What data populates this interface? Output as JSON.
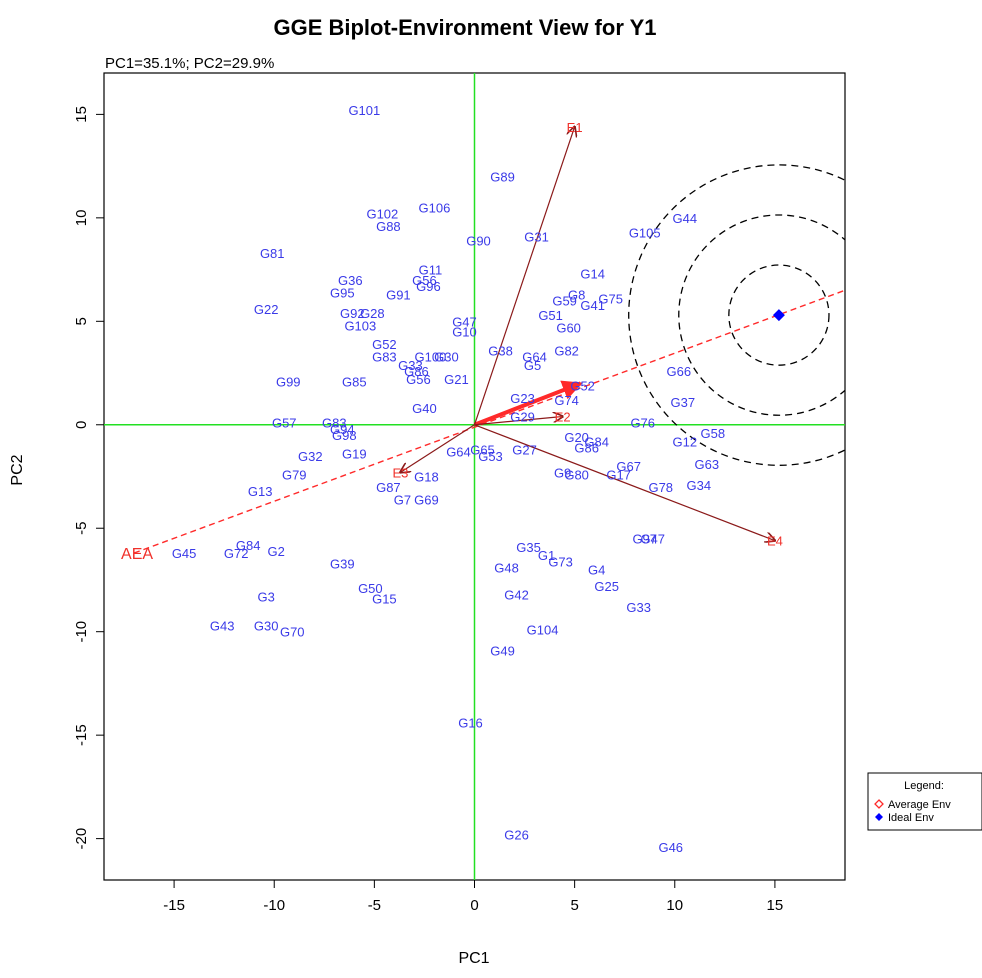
{
  "chart_data": {
    "type": "scatter",
    "title": "GGE Biplot-Environment View for Y1",
    "subtitle": "PC1=35.1%; PC2=29.9%",
    "xlabel": "PC1",
    "ylabel": "PC2",
    "xlim": [
      -18.5,
      18.5
    ],
    "ylim": [
      -22,
      17
    ],
    "xticks": [
      -15,
      -10,
      -5,
      0,
      5,
      10,
      15
    ],
    "yticks": [
      -20,
      -15,
      -10,
      -5,
      0,
      5,
      10,
      15
    ],
    "colors": {
      "genotype": "#3a3ae8",
      "environment": "#f0302a",
      "env_vector": "#8b1a1a",
      "axes_lines": "#22e022",
      "aea": "#ff2a2a",
      "ideal": "#0000ff",
      "circle": "#000000"
    },
    "genotypes": [
      {
        "name": "G101",
        "x": -5.5,
        "y": 15.2
      },
      {
        "name": "G89",
        "x": 1.4,
        "y": 12.0
      },
      {
        "name": "G102",
        "x": -4.6,
        "y": 10.2
      },
      {
        "name": "G88",
        "x": -4.3,
        "y": 9.6
      },
      {
        "name": "G106",
        "x": -2.0,
        "y": 10.5
      },
      {
        "name": "G90",
        "x": 0.2,
        "y": 8.9
      },
      {
        "name": "G31",
        "x": 3.1,
        "y": 9.1
      },
      {
        "name": "G105",
        "x": 8.5,
        "y": 9.3
      },
      {
        "name": "G44",
        "x": 10.5,
        "y": 10.0
      },
      {
        "name": "G81",
        "x": -10.1,
        "y": 8.3
      },
      {
        "name": "G11",
        "x": -2.2,
        "y": 7.5
      },
      {
        "name": "G36",
        "x": -6.2,
        "y": 7.0
      },
      {
        "name": "G95",
        "x": -6.6,
        "y": 6.4
      },
      {
        "name": "G91",
        "x": -3.8,
        "y": 6.3
      },
      {
        "name": "G56",
        "x": -2.5,
        "y": 7.0
      },
      {
        "name": "G96",
        "x": -2.3,
        "y": 6.7
      },
      {
        "name": "G14",
        "x": 5.9,
        "y": 7.3
      },
      {
        "name": "G22",
        "x": -10.4,
        "y": 5.6
      },
      {
        "name": "G92",
        "x": -6.1,
        "y": 5.4
      },
      {
        "name": "G28",
        "x": -5.1,
        "y": 5.4
      },
      {
        "name": "G103",
        "x": -5.7,
        "y": 4.8
      },
      {
        "name": "G47",
        "x": -0.5,
        "y": 5.0
      },
      {
        "name": "G10",
        "x": -0.5,
        "y": 4.5
      },
      {
        "name": "G51",
        "x": 3.8,
        "y": 5.3
      },
      {
        "name": "G59",
        "x": 4.5,
        "y": 6.0
      },
      {
        "name": "G8",
        "x": 5.1,
        "y": 6.3
      },
      {
        "name": "G41",
        "x": 5.9,
        "y": 5.8
      },
      {
        "name": "G75",
        "x": 6.8,
        "y": 6.1
      },
      {
        "name": "G60",
        "x": 4.7,
        "y": 4.7
      },
      {
        "name": "G52",
        "x": -4.5,
        "y": 3.9
      },
      {
        "name": "G83",
        "x": -4.5,
        "y": 3.3
      },
      {
        "name": "G100",
        "x": -2.2,
        "y": 3.3
      },
      {
        "name": "G30b",
        "x": -1.4,
        "y": 3.3
      },
      {
        "name": "G33b",
        "x": -3.2,
        "y": 2.9
      },
      {
        "name": "G38",
        "x": 1.3,
        "y": 3.6
      },
      {
        "name": "G64",
        "x": 3.0,
        "y": 3.3
      },
      {
        "name": "G5",
        "x": 2.9,
        "y": 2.9
      },
      {
        "name": "G82",
        "x": 4.6,
        "y": 3.6
      },
      {
        "name": "G86",
        "x": -2.9,
        "y": 2.6
      },
      {
        "name": "G56b",
        "x": -2.8,
        "y": 2.2
      },
      {
        "name": "G21",
        "x": -0.9,
        "y": 2.2
      },
      {
        "name": "G99",
        "x": -9.3,
        "y": 2.1
      },
      {
        "name": "G85",
        "x": -6.0,
        "y": 2.1
      },
      {
        "name": "G66",
        "x": 10.2,
        "y": 2.6
      },
      {
        "name": "G52b",
        "x": 5.4,
        "y": 1.9
      },
      {
        "name": "G23",
        "x": 2.4,
        "y": 1.3
      },
      {
        "name": "G74",
        "x": 4.6,
        "y": 1.2
      },
      {
        "name": "G37",
        "x": 10.4,
        "y": 1.1
      },
      {
        "name": "G40",
        "x": -2.5,
        "y": 0.8
      },
      {
        "name": "G29",
        "x": 2.4,
        "y": 0.4
      },
      {
        "name": "G76",
        "x": 8.4,
        "y": 0.1
      },
      {
        "name": "G57",
        "x": -9.5,
        "y": 0.1
      },
      {
        "name": "G83b",
        "x": -7.0,
        "y": 0.1
      },
      {
        "name": "G94",
        "x": -6.6,
        "y": -0.2
      },
      {
        "name": "G98",
        "x": -6.5,
        "y": -0.5
      },
      {
        "name": "G58",
        "x": 11.9,
        "y": -0.4
      },
      {
        "name": "G12",
        "x": 10.5,
        "y": -0.8
      },
      {
        "name": "G20",
        "x": 5.1,
        "y": -0.6
      },
      {
        "name": "G84",
        "x": 6.1,
        "y": -0.8
      },
      {
        "name": "G86b",
        "x": 5.6,
        "y": -1.1
      },
      {
        "name": "G32",
        "x": -8.2,
        "y": -1.5
      },
      {
        "name": "G19",
        "x": -6.0,
        "y": -1.4
      },
      {
        "name": "G64b",
        "x": -0.8,
        "y": -1.3
      },
      {
        "name": "G65",
        "x": 0.4,
        "y": -1.2
      },
      {
        "name": "G53",
        "x": 0.8,
        "y": -1.5
      },
      {
        "name": "G27",
        "x": 2.5,
        "y": -1.2
      },
      {
        "name": "G63",
        "x": 11.6,
        "y": -1.9
      },
      {
        "name": "G67",
        "x": 7.7,
        "y": -2.0
      },
      {
        "name": "G17",
        "x": 7.2,
        "y": -2.4
      },
      {
        "name": "G9",
        "x": 4.4,
        "y": -2.3
      },
      {
        "name": "G80",
        "x": 5.1,
        "y": -2.4
      },
      {
        "name": "G79",
        "x": -9.0,
        "y": -2.4
      },
      {
        "name": "G18",
        "x": -2.4,
        "y": -2.5
      },
      {
        "name": "G78",
        "x": 9.3,
        "y": -3.0
      },
      {
        "name": "G34",
        "x": 11.2,
        "y": -2.9
      },
      {
        "name": "G13",
        "x": -10.7,
        "y": -3.2
      },
      {
        "name": "G87",
        "x": -4.3,
        "y": -3.0
      },
      {
        "name": "G7",
        "x": -3.6,
        "y": -3.6
      },
      {
        "name": "G69",
        "x": -2.4,
        "y": -3.6
      },
      {
        "name": "G97",
        "x": 8.5,
        "y": -5.5
      },
      {
        "name": "G47b",
        "x": 8.9,
        "y": -5.5
      },
      {
        "name": "G35",
        "x": 2.7,
        "y": -5.9
      },
      {
        "name": "G1",
        "x": 3.6,
        "y": -6.3
      },
      {
        "name": "G73",
        "x": 4.3,
        "y": -6.6
      },
      {
        "name": "G84b",
        "x": -11.3,
        "y": -5.8
      },
      {
        "name": "G72",
        "x": -11.9,
        "y": -6.2
      },
      {
        "name": "G2",
        "x": -9.9,
        "y": -6.1
      },
      {
        "name": "G45",
        "x": -14.5,
        "y": -6.2
      },
      {
        "name": "G39",
        "x": -6.6,
        "y": -6.7
      },
      {
        "name": "G48",
        "x": 1.6,
        "y": -6.9
      },
      {
        "name": "G4",
        "x": 6.1,
        "y": -7.0
      },
      {
        "name": "G25",
        "x": 6.6,
        "y": -7.8
      },
      {
        "name": "G50",
        "x": -5.2,
        "y": -7.9
      },
      {
        "name": "G15",
        "x": -4.5,
        "y": -8.4
      },
      {
        "name": "G3",
        "x": -10.4,
        "y": -8.3
      },
      {
        "name": "G42",
        "x": 2.1,
        "y": -8.2
      },
      {
        "name": "G33",
        "x": 8.2,
        "y": -8.8
      },
      {
        "name": "G43",
        "x": -12.6,
        "y": -9.7
      },
      {
        "name": "G30",
        "x": -10.4,
        "y": -9.7
      },
      {
        "name": "G70",
        "x": -9.1,
        "y": -10.0
      },
      {
        "name": "G104",
        "x": 3.4,
        "y": -9.9
      },
      {
        "name": "G49",
        "x": 1.4,
        "y": -10.9
      },
      {
        "name": "G16",
        "x": -0.2,
        "y": -14.4
      },
      {
        "name": "G26",
        "x": 2.1,
        "y": -19.8
      },
      {
        "name": "G46",
        "x": 9.8,
        "y": -20.4
      }
    ],
    "environments": [
      {
        "name": "E1",
        "x": 5.0,
        "y": 14.4
      },
      {
        "name": "E2",
        "x": 4.4,
        "y": 0.4
      },
      {
        "name": "E3",
        "x": -3.7,
        "y": -2.3
      },
      {
        "name": "E4",
        "x": 15.0,
        "y": -5.6
      }
    ],
    "aea": {
      "label": "AEA",
      "start": [
        -17.0,
        -6.2
      ],
      "end": [
        18.5,
        6.5
      ],
      "arrow_to": [
        5.3,
        2.0
      ]
    },
    "ideal": {
      "x": 15.2,
      "y": 5.3,
      "radii": [
        2.5,
        5.0,
        7.5
      ]
    },
    "legend": {
      "title": "Legend:",
      "position": "bottom-right",
      "items": [
        {
          "label": "Average Env",
          "symbol": "open-diamond",
          "color": "#ff2a2a"
        },
        {
          "label": "Ideal Env",
          "symbol": "filled-diamond",
          "color": "#0000ff"
        }
      ]
    }
  }
}
